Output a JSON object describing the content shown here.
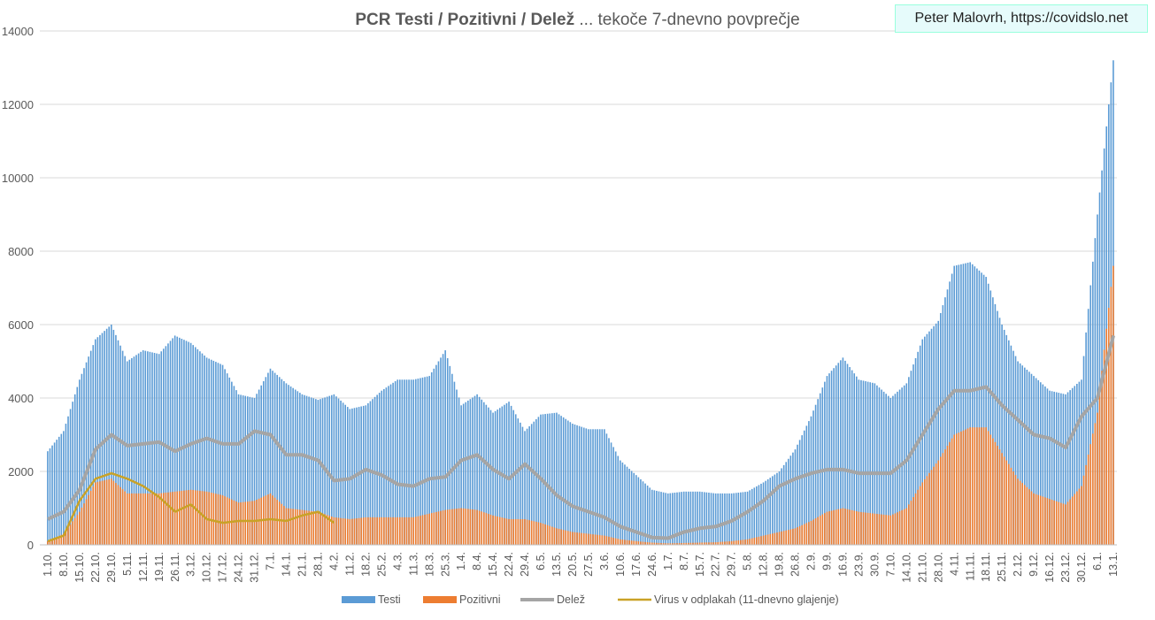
{
  "chart_data": {
    "type": "bar",
    "title_bold": "PCR Testi / Pozitivni / Delež",
    "title_rest": " ... tekoče 7-dnevno povprečje",
    "annotation": "Peter Malovrh, https://covidslo.net",
    "ylim": [
      0,
      14000
    ],
    "yticks": [
      "0",
      "2000",
      "4000",
      "6000",
      "8000",
      "10000",
      "12000",
      "14000"
    ],
    "resolution": "weekly samples (values at each x tick label)",
    "categories": [
      "1.10.",
      "8.10.",
      "15.10.",
      "22.10.",
      "29.10.",
      "5.11.",
      "12.11.",
      "19.11.",
      "26.11.",
      "3.12.",
      "10.12.",
      "17.12.",
      "24.12.",
      "31.12.",
      "7.1.",
      "14.1.",
      "21.1.",
      "28.1.",
      "4.2.",
      "11.2.",
      "18.2.",
      "25.2.",
      "4.3.",
      "11.3.",
      "18.3.",
      "25.3.",
      "1.4.",
      "8.4.",
      "15.4.",
      "22.4.",
      "29.4.",
      "6.5.",
      "13.5.",
      "20.5.",
      "27.5.",
      "3.6.",
      "10.6.",
      "17.6.",
      "24.6.",
      "1.7.",
      "8.7.",
      "15.7.",
      "22.7.",
      "29.7.",
      "5.8.",
      "12.8.",
      "19.8.",
      "26.8.",
      "2.9.",
      "9.9.",
      "16.9.",
      "23.9.",
      "30.9.",
      "7.10.",
      "14.10.",
      "21.10.",
      "28.10.",
      "4.11.",
      "11.11.",
      "18.11.",
      "25.11.",
      "2.12.",
      "9.12.",
      "16.12.",
      "23.12.",
      "30.12.",
      "6.1.",
      "13.1."
    ],
    "series": [
      {
        "name": "Testi",
        "type": "bar",
        "color": "#5b9bd5",
        "values": [
          2550,
          3100,
          4500,
          5600,
          6000,
          5000,
          5300,
          5200,
          5700,
          5500,
          5100,
          4900,
          4100,
          4000,
          4800,
          4400,
          4100,
          3950,
          4100,
          3700,
          3800,
          4200,
          4500,
          4500,
          4600,
          5300,
          3800,
          4100,
          3600,
          3900,
          3100,
          3550,
          3600,
          3300,
          3150,
          3150,
          2300,
          1900,
          1500,
          1400,
          1450,
          1450,
          1400,
          1400,
          1450,
          1700,
          2000,
          2600,
          3500,
          4600,
          5100,
          4500,
          4400,
          4000,
          4400,
          5600,
          6100,
          7600,
          7700,
          7300,
          6000,
          5000,
          4600,
          4200,
          4100,
          4500,
          9000,
          13200
        ]
      },
      {
        "name": "Pozitivni",
        "type": "bar",
        "color": "#ed7d31",
        "values": [
          100,
          300,
          900,
          1700,
          1800,
          1400,
          1400,
          1400,
          1450,
          1500,
          1450,
          1350,
          1150,
          1200,
          1400,
          1000,
          950,
          900,
          750,
          700,
          750,
          750,
          750,
          750,
          850,
          950,
          1000,
          950,
          800,
          700,
          700,
          600,
          450,
          350,
          300,
          250,
          150,
          100,
          60,
          40,
          50,
          60,
          70,
          100,
          150,
          250,
          350,
          450,
          650,
          900,
          1000,
          900,
          850,
          800,
          1000,
          1700,
          2300,
          3000,
          3200,
          3200,
          2500,
          1800,
          1400,
          1250,
          1100,
          1600,
          3600,
          7600
        ]
      },
      {
        "name": "Delež",
        "type": "line",
        "color": "#a5a5a5",
        "values": [
          700,
          900,
          1500,
          2600,
          3000,
          2700,
          2750,
          2800,
          2550,
          2750,
          2900,
          2750,
          2750,
          3100,
          3000,
          2450,
          2450,
          2300,
          1750,
          1800,
          2050,
          1900,
          1650,
          1600,
          1800,
          1850,
          2300,
          2450,
          2050,
          1800,
          2200,
          1800,
          1350,
          1050,
          900,
          750,
          500,
          350,
          200,
          180,
          350,
          450,
          500,
          650,
          900,
          1200,
          1600,
          1800,
          1950,
          2050,
          2050,
          1950,
          1950,
          1950,
          2300,
          3000,
          3700,
          4200,
          4200,
          4300,
          3800,
          3400,
          3000,
          2900,
          2650,
          3500,
          4000,
          5700
        ]
      },
      {
        "name": "Virus v odplakah (11-dnevno glajenje)",
        "type": "line",
        "color": "#c9a227",
        "values": [
          100,
          250,
          1200,
          1800,
          1950,
          1800,
          1600,
          1300,
          900,
          1100,
          700,
          600,
          650,
          650,
          700,
          650,
          800,
          900,
          600,
          null,
          null,
          null,
          null,
          null,
          null,
          null,
          null,
          null,
          null,
          null,
          null,
          null,
          null,
          null,
          null,
          null,
          null,
          null,
          null,
          null,
          null,
          null,
          null,
          null,
          null,
          null,
          null,
          null,
          null,
          null,
          null,
          null,
          null,
          null,
          null,
          null,
          null,
          null,
          null,
          null,
          null,
          null,
          null,
          null,
          null,
          null,
          null,
          null
        ]
      }
    ],
    "legend_position": "bottom",
    "grid": true
  }
}
